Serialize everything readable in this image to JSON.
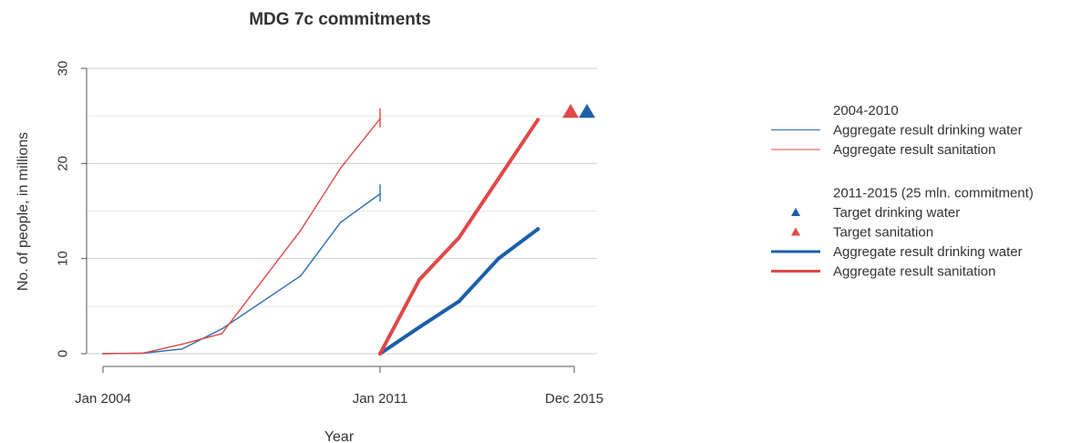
{
  "chart_data": {
    "type": "line",
    "title": "MDG 7c commitments",
    "xlabel": "Year",
    "ylabel": "No. of people, in millions",
    "x_ticks": [
      "Jan 2004",
      "Jan 2011",
      "Dec 2015"
    ],
    "y_ticks": [
      0,
      10,
      20,
      30
    ],
    "ylim": [
      0,
      30
    ],
    "xlim": [
      "2004-01",
      "2015-12"
    ],
    "grid": true,
    "legend_position": "right",
    "legend": [
      {
        "heading": "2004-2010",
        "entries": [
          {
            "label": "Aggregate result drinking water",
            "kind": "thin-line",
            "color": "#2b6cb0"
          },
          {
            "label": "Aggregate result sanitation",
            "kind": "thin-line",
            "color": "#e04848"
          }
        ]
      },
      {
        "heading": "2011-2015 (25 mln. commitment)",
        "entries": [
          {
            "label": "Target drinking water",
            "kind": "triangle",
            "color": "#1a5fa8"
          },
          {
            "label": "Target sanitation",
            "kind": "triangle",
            "color": "#e04848"
          },
          {
            "label": "Aggregate result drinking water",
            "kind": "thick-line",
            "color": "#1a5fa8"
          },
          {
            "label": "Aggregate result sanitation",
            "kind": "thick-line",
            "color": "#e04848"
          }
        ]
      }
    ],
    "series": [
      {
        "period": "2004-2010",
        "kind": "thin-line",
        "color": "#2b6cb0",
        "x": [
          2004.0,
          2005.0,
          2006.0,
          2007.0,
          2009.0,
          2010.0,
          2011.0
        ],
        "y": [
          0.0,
          0.05,
          0.5,
          2.6,
          8.2,
          13.8,
          16.8
        ],
        "error_bar": {
          "x": 2011.0,
          "low": 16.0,
          "high": 17.8
        }
      },
      {
        "period": "2004-2010",
        "kind": "thin-line",
        "color": "#e04848",
        "x": [
          2004.0,
          2005.0,
          2006.0,
          2007.0,
          2009.0,
          2010.0,
          2011.0
        ],
        "y": [
          0.0,
          0.05,
          1.0,
          2.1,
          13.0,
          19.5,
          24.7
        ],
        "error_bar": {
          "x": 2011.0,
          "low": 23.8,
          "high": 25.8
        }
      },
      {
        "period": "2011-2015",
        "kind": "thick-line",
        "color": "#1a5fa8",
        "x": [
          2011.0,
          2012.0,
          2013.0,
          2014.0,
          2015.0
        ],
        "y": [
          0.0,
          2.8,
          5.5,
          10.0,
          13.1
        ]
      },
      {
        "period": "2011-2015",
        "kind": "thick-line",
        "color": "#e04848",
        "x": [
          2011.0,
          2012.0,
          2013.0,
          2014.0,
          2015.0
        ],
        "y": [
          0.0,
          7.8,
          12.2,
          18.4,
          24.6
        ]
      }
    ],
    "targets": [
      {
        "x": 2015.92,
        "y": 25.4,
        "color": "#1a5fa8"
      },
      {
        "x": 2015.9,
        "y": 25.4,
        "color": "#e04848"
      }
    ]
  }
}
